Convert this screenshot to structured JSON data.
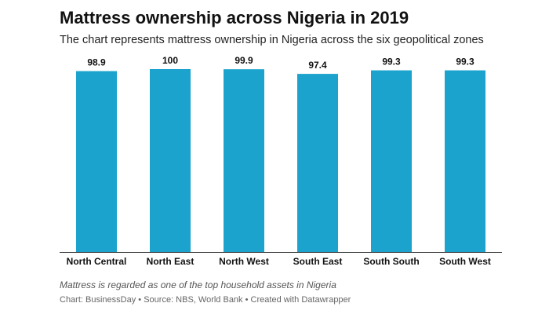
{
  "title": "Mattress ownership across Nigeria in 2019",
  "subtitle": "The chart represents mattress ownership in Nigeria across the six geopolitical zones",
  "note": "Mattress is regarded as one of the top household assets in Nigeria",
  "credits": {
    "chart": "Chart: BusinessDay",
    "separator1": "•",
    "source": "Source: NBS, World Bank",
    "separator2": "•",
    "created": "Created with Datawrapper"
  },
  "colors": {
    "bar": "#1ba3ce",
    "axis": "#333333",
    "label": "#111111"
  },
  "chart_data": {
    "type": "bar",
    "title": "Mattress ownership across Nigeria in 2019",
    "xlabel": "",
    "ylabel": "",
    "ylim": [
      0,
      100
    ],
    "grid": false,
    "categories": [
      "North Central",
      "North East",
      "North West",
      "South East",
      "South South",
      "South West"
    ],
    "values": [
      98.9,
      100,
      99.9,
      97.4,
      99.3,
      99.3
    ],
    "value_labels": [
      "98.9",
      "100",
      "99.9",
      "97.4",
      "99.3",
      "99.3"
    ]
  }
}
